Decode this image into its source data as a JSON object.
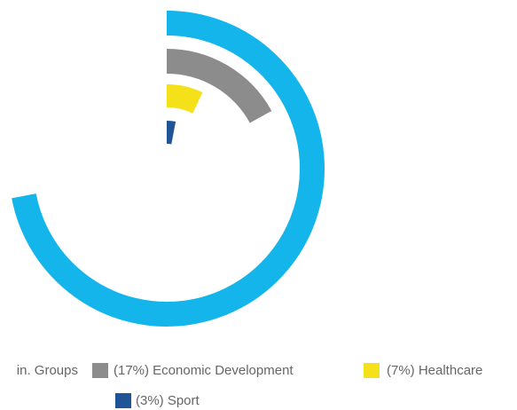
{
  "chart_data": {
    "type": "radial-bar",
    "series": [
      {
        "name": "in. Groups",
        "color": "#13b5ea",
        "values": [
          72
        ]
      },
      {
        "name": "(17%) Economic Development",
        "color": "#8c8c8c",
        "values": [
          17
        ]
      },
      {
        "name": "(7%) Healthcare",
        "color": "#f5e11a",
        "values": [
          7
        ]
      },
      {
        "name": "(3%) Sport",
        "color": "#1f5597",
        "values": [
          3
        ]
      }
    ],
    "ylim": [
      0,
      100
    ]
  }
}
